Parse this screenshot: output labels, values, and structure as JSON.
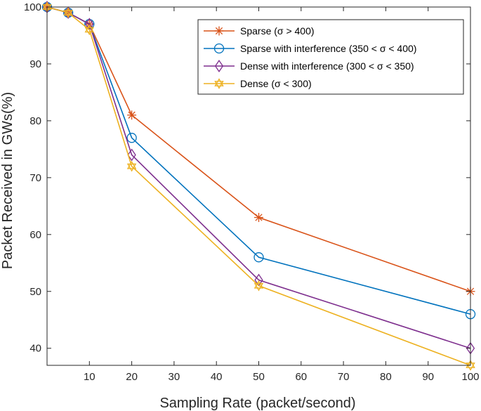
{
  "chart_data": {
    "type": "line",
    "title": "",
    "xlabel": "Sampling Rate (packet/second)",
    "ylabel": "Packet Received in GWs(%)",
    "xlim": [
      0,
      100
    ],
    "ylim": [
      37,
      100
    ],
    "xticks": [
      10,
      20,
      30,
      40,
      50,
      60,
      70,
      80,
      90,
      100
    ],
    "yticks": [
      40,
      50,
      60,
      70,
      80,
      90,
      100
    ],
    "grid": true,
    "legend_position": "top-right",
    "x": [
      0,
      5,
      10,
      20,
      50,
      100
    ],
    "series": [
      {
        "name": "Sparse (σ > 400)",
        "marker": "asterisk",
        "color": "#D95319",
        "values": [
          100,
          99,
          97,
          81,
          63,
          50
        ]
      },
      {
        "name": "Sparse with interference (350 < σ < 400)",
        "marker": "circle",
        "color": "#0072BD",
        "values": [
          100,
          99,
          97,
          77,
          56,
          46
        ]
      },
      {
        "name": "Dense with interference (300 < σ < 350)",
        "marker": "diamond",
        "color": "#7E2F8E",
        "values": [
          100,
          99,
          97,
          74,
          52,
          40
        ]
      },
      {
        "name": "Dense (σ < 300)",
        "marker": "hexagram",
        "color": "#EDB120",
        "values": [
          100,
          99,
          96,
          72,
          51,
          37
        ]
      }
    ]
  }
}
